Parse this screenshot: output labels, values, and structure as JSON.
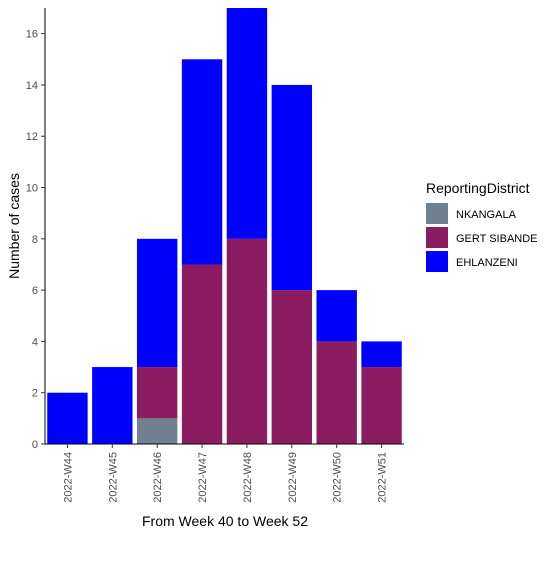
{
  "chart_data": {
    "type": "bar",
    "stacked": true,
    "categories": [
      "2022-W44",
      "2022-W45",
      "2022-W46",
      "2022-W47",
      "2022-W48",
      "2022-W49",
      "2022-W50",
      "2022-W51"
    ],
    "series": [
      {
        "name": "NKANGALA",
        "color": "#708090",
        "values": [
          0,
          0,
          1,
          0,
          0,
          0,
          0,
          0
        ]
      },
      {
        "name": "GERT SIBANDE",
        "color": "#8B1C62",
        "values": [
          0,
          0,
          2,
          7,
          8,
          6,
          4,
          3
        ]
      },
      {
        "name": "EHLANZENI",
        "color": "#0000FF",
        "values": [
          2,
          3,
          5,
          8,
          9,
          8,
          2,
          1
        ]
      }
    ],
    "xlabel": "From Week 40 to Week 52",
    "ylabel": "Number of cases",
    "ylim": [
      0,
      17
    ],
    "yticks": [
      0,
      2,
      4,
      6,
      8,
      10,
      12,
      14,
      16
    ],
    "grid": false,
    "legend": {
      "title": "ReportingDistrict",
      "placement": "right",
      "order": [
        "NKANGALA",
        "GERT SIBANDE",
        "EHLANZENI"
      ]
    }
  }
}
